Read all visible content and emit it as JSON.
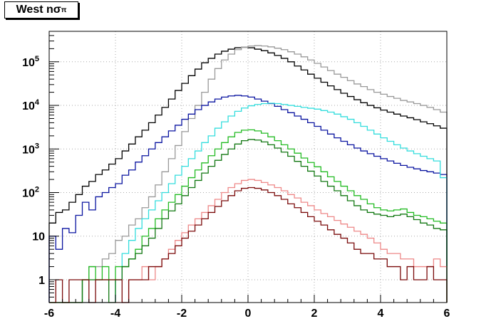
{
  "title": {
    "main": "West n",
    "symbol": "σ",
    "subscript": "π"
  },
  "chart_data": {
    "type": "histogram-step",
    "title": "West nσπ",
    "xlabel": "",
    "ylabel": "",
    "xlim": [
      -6,
      6
    ],
    "ylim": [
      0.3,
      500000
    ],
    "log_y": true,
    "grid": true,
    "x_ticks": [
      "-6",
      "-4",
      "-2",
      "0",
      "2",
      "4",
      "6"
    ],
    "y_ticks": [
      {
        "value": 1,
        "base": "1",
        "exp": ""
      },
      {
        "value": 10,
        "base": "10",
        "exp": ""
      },
      {
        "value": 100,
        "base": "10",
        "exp": "2"
      },
      {
        "value": 1000,
        "base": "10",
        "exp": "3"
      },
      {
        "value": 10000,
        "base": "10",
        "exp": "4"
      },
      {
        "value": 100000,
        "base": "10",
        "exp": "5"
      }
    ],
    "bin_width": 0.2,
    "x": [
      -5.9,
      -5.7,
      -5.5,
      -5.3,
      -5.1,
      -4.9,
      -4.7,
      -4.5,
      -4.3,
      -4.1,
      -3.9,
      -3.7,
      -3.5,
      -3.3,
      -3.1,
      -2.9,
      -2.7,
      -2.5,
      -2.3,
      -2.1,
      -1.9,
      -1.7,
      -1.5,
      -1.3,
      -1.1,
      -0.9,
      -0.7,
      -0.5,
      -0.3,
      -0.1,
      0.1,
      0.3,
      0.5,
      0.7,
      0.9,
      1.1,
      1.3,
      1.5,
      1.7,
      1.9,
      2.1,
      2.3,
      2.5,
      2.7,
      2.9,
      3.1,
      3.3,
      3.5,
      3.7,
      3.9,
      4.1,
      4.3,
      4.5,
      4.7,
      4.9,
      5.1,
      5.3,
      5.5,
      5.7,
      5.9
    ],
    "series": [
      {
        "color": "#000000",
        "values": [
          20,
          35,
          40,
          60,
          90,
          140,
          180,
          260,
          330,
          450,
          600,
          900,
          1300,
          1900,
          2700,
          4000,
          6000,
          9000,
          14000,
          22000,
          32000,
          48000,
          68000,
          95000,
          120000,
          150000,
          175000,
          195000,
          210000,
          215000,
          210000,
          195000,
          180000,
          160000,
          140000,
          120000,
          100000,
          80000,
          65000,
          52000,
          42000,
          34000,
          28000,
          23000,
          19000,
          16000,
          13500,
          11500,
          10000,
          8800,
          7800,
          7000,
          6300,
          5700,
          5200,
          4700,
          4200,
          3800,
          3400,
          3000
        ]
      },
      {
        "color": "#999999",
        "values": [
          0.3,
          0.3,
          0.3,
          0.3,
          0.3,
          1,
          2,
          2,
          3,
          4,
          8,
          10,
          18,
          25,
          45,
          80,
          150,
          300,
          600,
          1200,
          2500,
          5000,
          10000,
          20000,
          40000,
          70000,
          110000,
          150000,
          190000,
          215000,
          230000,
          235000,
          230000,
          220000,
          205000,
          190000,
          170000,
          150000,
          130000,
          110000,
          92000,
          76000,
          63000,
          52000,
          44000,
          37000,
          31000,
          27000,
          23000,
          20000,
          18000,
          16000,
          14500,
          13000,
          12000,
          11000,
          10000,
          9000,
          8000,
          7000
        ]
      },
      {
        "color": "#0a14a0",
        "values": [
          10,
          5,
          15,
          12,
          30,
          60,
          40,
          80,
          100,
          130,
          160,
          250,
          330,
          500,
          700,
          1000,
          1400,
          1900,
          2600,
          3500,
          4800,
          6300,
          8000,
          10000,
          12000,
          14000,
          15500,
          16500,
          17000,
          16500,
          15500,
          14000,
          12500,
          11000,
          9500,
          8000,
          6800,
          5700,
          4800,
          4000,
          3300,
          2700,
          2200,
          1800,
          1500,
          1250,
          1050,
          900,
          780,
          680,
          600,
          530,
          470,
          420,
          380,
          350,
          320,
          300,
          280,
          260
        ]
      },
      {
        "color": "#33dddd",
        "values": [
          0.3,
          0.3,
          0.3,
          0.3,
          0.3,
          0.3,
          0.3,
          0.3,
          0.3,
          0.3,
          1,
          4,
          8,
          15,
          25,
          40,
          65,
          100,
          160,
          250,
          400,
          600,
          900,
          1400,
          2000,
          3000,
          4200,
          5700,
          7300,
          8700,
          9800,
          10500,
          11000,
          11200,
          11000,
          10500,
          10000,
          9500,
          9000,
          8600,
          8200,
          7600,
          7000,
          6300,
          5500,
          4800,
          4000,
          3300,
          2700,
          2200,
          1800,
          1500,
          1250,
          1050,
          900,
          780,
          680,
          600,
          530,
          220
        ]
      },
      {
        "color": "#22bb22",
        "values": [
          0.3,
          0.3,
          0.3,
          0.3,
          0.3,
          1,
          2,
          1,
          2,
          1,
          2,
          2,
          3,
          5,
          10,
          15,
          25,
          40,
          60,
          90,
          140,
          220,
          330,
          480,
          700,
          1000,
          1400,
          1900,
          2400,
          2700,
          2750,
          2600,
          2300,
          1900,
          1550,
          1250,
          1000,
          800,
          620,
          490,
          390,
          300,
          230,
          180,
          140,
          110,
          85,
          70,
          55,
          45,
          40,
          38,
          40,
          42,
          35,
          30,
          28,
          25,
          22,
          20
        ]
      },
      {
        "color": "#117711",
        "values": [
          0.3,
          0.3,
          0.3,
          0.3,
          0.3,
          1,
          1,
          1,
          1,
          0.3,
          1,
          2,
          3,
          4,
          6,
          9,
          15,
          25,
          38,
          55,
          85,
          130,
          190,
          280,
          400,
          550,
          750,
          1000,
          1300,
          1550,
          1650,
          1600,
          1450,
          1250,
          1050,
          850,
          680,
          520,
          400,
          310,
          240,
          180,
          140,
          110,
          85,
          65,
          50,
          40,
          35,
          32,
          30,
          28,
          30,
          32,
          28,
          24,
          20,
          18,
          15,
          14
        ]
      },
      {
        "color": "#ee8888",
        "values": [
          0.3,
          0.3,
          0.3,
          0.3,
          0.3,
          0.3,
          0.3,
          0.3,
          0.3,
          0.3,
          0.3,
          0.3,
          1,
          1,
          2,
          1,
          2,
          3,
          5,
          8,
          12,
          18,
          25,
          35,
          50,
          70,
          100,
          130,
          160,
          190,
          200,
          190,
          170,
          150,
          130,
          110,
          90,
          75,
          60,
          50,
          40,
          33,
          28,
          23,
          19,
          16,
          13,
          11,
          9,
          7,
          5,
          4,
          4,
          3,
          3,
          2,
          2,
          2,
          3,
          2
        ]
      },
      {
        "color": "#7a0a0a",
        "values": [
          0.3,
          1,
          0.3,
          1,
          1,
          1,
          0.3,
          1,
          1,
          1,
          1,
          0.3,
          1,
          1,
          1,
          2,
          2,
          3,
          4,
          6,
          9,
          13,
          18,
          25,
          35,
          48,
          65,
          85,
          110,
          125,
          130,
          125,
          115,
          100,
          85,
          70,
          55,
          45,
          35,
          28,
          22,
          18,
          14,
          11,
          9,
          7,
          5,
          4,
          4,
          3,
          3,
          2,
          2,
          1,
          2,
          1,
          1,
          2,
          1,
          1
        ]
      }
    ]
  }
}
